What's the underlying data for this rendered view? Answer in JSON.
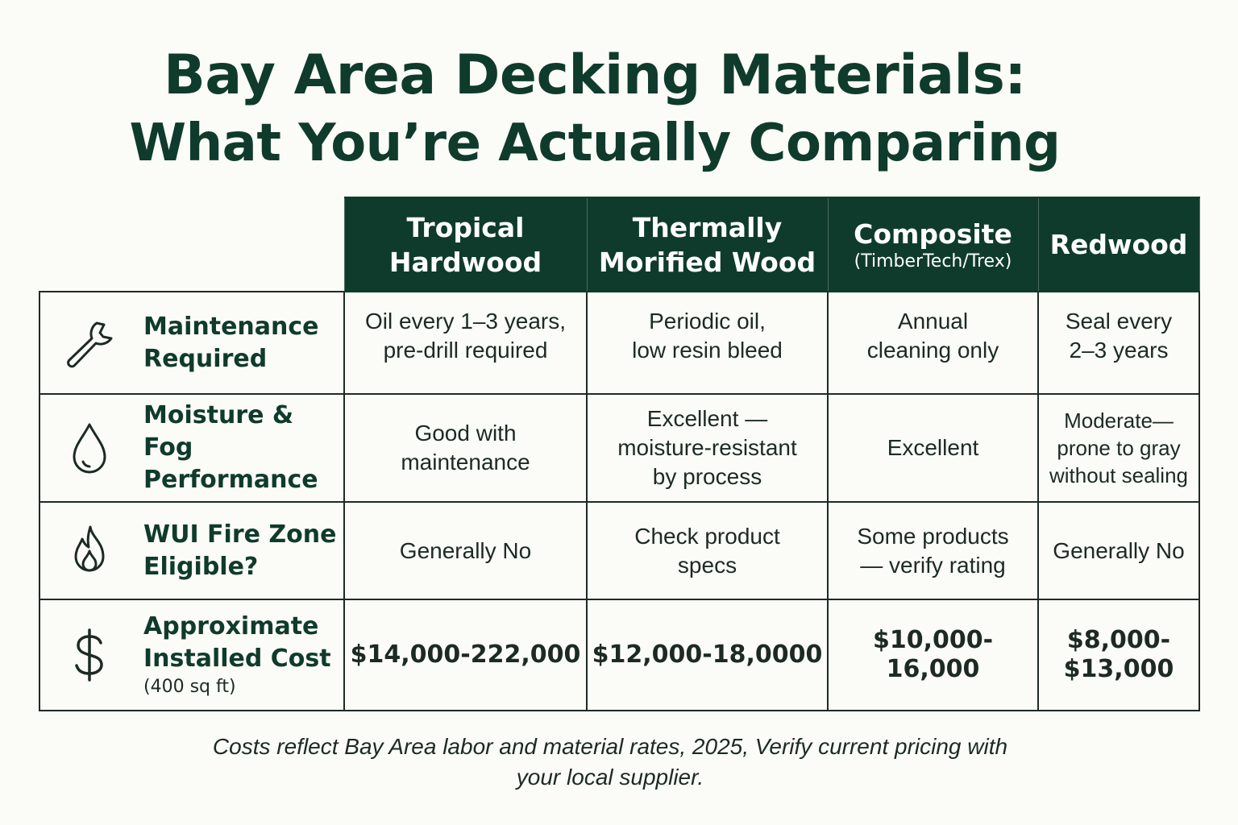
{
  "title": {
    "line1": "Bay Area Decking Materials:",
    "line2": "What You’re Actually Comparing"
  },
  "columns": [
    {
      "line1": "Tropical",
      "line2": "Hardwood",
      "sub": ""
    },
    {
      "line1": "Thermally",
      "line2": "Morified Wood",
      "sub": ""
    },
    {
      "line1": "Composite",
      "line2": "",
      "sub": "(TimberTech/Trex)"
    },
    {
      "line1": "Redwood",
      "line2": "",
      "sub": ""
    }
  ],
  "rows": [
    {
      "icon": "wrench-icon",
      "label1": "Maintenance",
      "label2": "Required",
      "label_small": "",
      "cells": [
        [
          "Oil every 1–3 years,",
          "pre-drill required"
        ],
        [
          "Periodic oil,",
          "low resin bleed"
        ],
        [
          "Annual",
          "cleaning only"
        ],
        [
          "Seal every",
          "2–3 years"
        ]
      ]
    },
    {
      "icon": "water-drop-icon",
      "label1": "Moisture &",
      "label2": "Fog Performance",
      "label_small": "",
      "cells": [
        [
          "Good with",
          "maintenance",
          ""
        ],
        [
          "Excellent —",
          "moisture-resistant",
          "by process"
        ],
        [
          "Excellent",
          "",
          ""
        ],
        [
          "Moderate—",
          "prone to gray",
          "without sealing"
        ]
      ]
    },
    {
      "icon": "flame-icon",
      "label1": "WUI Fire Zone",
      "label2": "Eligible?",
      "label_small": "",
      "cells": [
        [
          "Generally No",
          ""
        ],
        [
          "Check product",
          "specs"
        ],
        [
          "Some products",
          "— verify rating"
        ],
        [
          "Generally No",
          ""
        ]
      ]
    },
    {
      "icon": "dollar-icon",
      "label1": "Approximate",
      "label2": "Installed Cost",
      "label_small": "(400 sq ft)",
      "cells": [
        [
          "$14,000-222,000",
          ""
        ],
        [
          "$12,000-18,0000",
          ""
        ],
        [
          "$10,000-16,000",
          ""
        ],
        [
          "$8,000-",
          "$13,000"
        ]
      ]
    }
  ],
  "note": {
    "line1": "Costs reflect Bay Area labor and material rates, 2025, Verify current pricing with",
    "line2": "your local supplier."
  },
  "colors": {
    "header_bg": "#0f3b2c",
    "title": "#0f3b2c",
    "background": "#fbfbf7"
  }
}
